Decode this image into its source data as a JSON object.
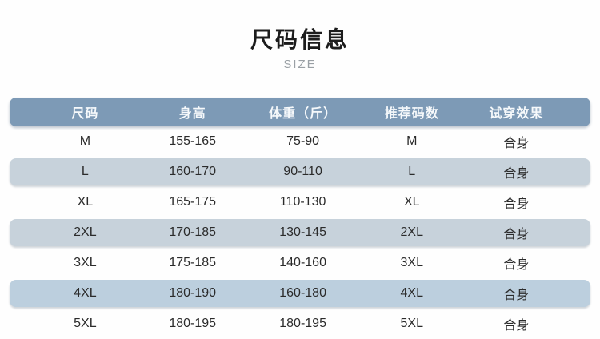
{
  "page": {
    "title": "尺码信息",
    "subtitle": "SIZE"
  },
  "colors": {
    "header_bg": "#7d9ab6",
    "header_text": "#f6f9fb",
    "stripe_bg": "#c7d2db",
    "stripe_bg_blue": "#bccfde",
    "body_text": "#2b2b2b",
    "title_text": "#1c1c1c",
    "subtitle_text": "#9aa0a5",
    "page_bg": "#fefefe"
  },
  "chart_data": {
    "type": "table",
    "title": "尺码信息",
    "subtitle": "SIZE",
    "columns": [
      "尺码",
      "身高",
      "体重（斤）",
      "推荐码数",
      "试穿效果"
    ],
    "rows": [
      {
        "size": "M",
        "height": "155-165",
        "weight": "75-90",
        "recommended": "M",
        "fit": "合身"
      },
      {
        "size": "L",
        "height": "160-170",
        "weight": "90-110",
        "recommended": "L",
        "fit": "合身"
      },
      {
        "size": "XL",
        "height": "165-175",
        "weight": "110-130",
        "recommended": "XL",
        "fit": "合身"
      },
      {
        "size": "2XL",
        "height": "170-185",
        "weight": "130-145",
        "recommended": "2XL",
        "fit": "合身"
      },
      {
        "size": "3XL",
        "height": "175-185",
        "weight": "140-160",
        "recommended": "3XL",
        "fit": "合身"
      },
      {
        "size": "4XL",
        "height": "180-190",
        "weight": "160-180",
        "recommended": "4XL",
        "fit": "合身"
      },
      {
        "size": "5XL",
        "height": "180-195",
        "weight": "180-195",
        "recommended": "5XL",
        "fit": "合身"
      }
    ],
    "layout": {
      "striped_rows": [
        "L",
        "2XL",
        "4XL"
      ],
      "grid": "off",
      "header_style": "rounded-pill"
    }
  }
}
